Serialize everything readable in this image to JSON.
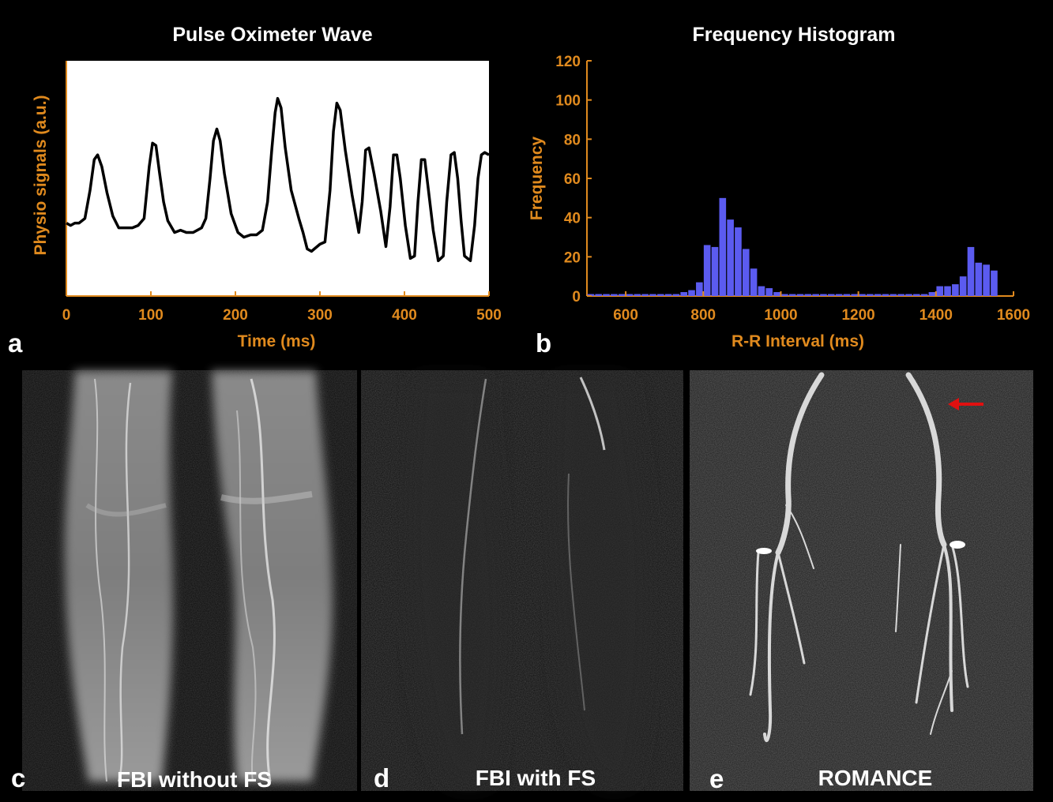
{
  "panels": {
    "a": {
      "letter": "a",
      "chart_data": {
        "type": "line",
        "title": "Pulse Oximeter Wave",
        "xlabel": "Time (ms)",
        "ylabel": "Physio signals (a.u.)",
        "xlim": [
          0,
          500
        ],
        "ylim": [
          0,
          1
        ],
        "xticks": [
          "0",
          "100",
          "200",
          "300",
          "400",
          "500"
        ],
        "grid": false,
        "series": [
          {
            "x": [
              0,
              5,
              10,
              15,
              22,
              28,
              33,
              37,
              42,
              48,
              55,
              62,
              70,
              78,
              85,
              92,
              98,
              102,
              106,
              110,
              115,
              120,
              128,
              135,
              142,
              150,
              160,
              165,
              170,
              174,
              178,
              182,
              187,
              195,
              203,
              210,
              218,
              225,
              232,
              238,
              243,
              247,
              250,
              254,
              259,
              266,
              275,
              280,
              285,
              290,
              300,
              306,
              312,
              316,
              320,
              324,
              330,
              338,
              346,
              350,
              354,
              358,
              364,
              372,
              378,
              383,
              387,
              391,
              395,
              401,
              407,
              412,
              416,
              420,
              424,
              428,
              434,
              440,
              446,
              450,
              455,
              459,
              463,
              467,
              471,
              478,
              483,
              487,
              491,
              495,
              500
            ],
            "y": [
              0.31,
              0.3,
              0.31,
              0.31,
              0.33,
              0.45,
              0.58,
              0.6,
              0.55,
              0.44,
              0.34,
              0.29,
              0.29,
              0.29,
              0.3,
              0.33,
              0.55,
              0.65,
              0.64,
              0.53,
              0.4,
              0.32,
              0.27,
              0.28,
              0.27,
              0.27,
              0.29,
              0.33,
              0.5,
              0.66,
              0.71,
              0.66,
              0.52,
              0.35,
              0.27,
              0.25,
              0.26,
              0.26,
              0.28,
              0.4,
              0.62,
              0.78,
              0.84,
              0.8,
              0.63,
              0.45,
              0.33,
              0.27,
              0.2,
              0.19,
              0.22,
              0.23,
              0.45,
              0.7,
              0.82,
              0.79,
              0.62,
              0.43,
              0.27,
              0.4,
              0.62,
              0.63,
              0.52,
              0.36,
              0.21,
              0.38,
              0.6,
              0.6,
              0.5,
              0.3,
              0.16,
              0.17,
              0.4,
              0.58,
              0.58,
              0.46,
              0.28,
              0.15,
              0.17,
              0.4,
              0.6,
              0.61,
              0.5,
              0.32,
              0.17,
              0.15,
              0.3,
              0.5,
              0.6,
              0.61,
              0.6
            ]
          }
        ]
      }
    },
    "b": {
      "letter": "b",
      "chart_data": {
        "type": "bar",
        "title": "Frequency Histogram",
        "xlabel": "R-R Interval (ms)",
        "ylabel": "Frequency",
        "xlim": [
          500,
          1600
        ],
        "ylim": [
          0,
          120
        ],
        "xticks": [
          "600",
          "800",
          "1000",
          "1200",
          "1400",
          "1600"
        ],
        "yticks": [
          "0",
          "20",
          "40",
          "60",
          "80",
          "100",
          "120"
        ],
        "grid": false,
        "bar_width_ms": 20,
        "bar_color": "#5b5bf0",
        "bins": [
          510,
          530,
          550,
          570,
          590,
          610,
          630,
          650,
          670,
          690,
          710,
          730,
          750,
          770,
          790,
          810,
          830,
          850,
          870,
          890,
          910,
          930,
          950,
          970,
          990,
          1010,
          1030,
          1050,
          1070,
          1090,
          1110,
          1130,
          1150,
          1170,
          1190,
          1210,
          1230,
          1250,
          1270,
          1290,
          1310,
          1330,
          1350,
          1370,
          1390,
          1410,
          1430,
          1450,
          1470,
          1490,
          1510,
          1530,
          1550
        ],
        "values": [
          1,
          1,
          1,
          1,
          1,
          1,
          1,
          1,
          1,
          1,
          1,
          1,
          2,
          3,
          7,
          26,
          25,
          50,
          39,
          35,
          24,
          14,
          5,
          4,
          2,
          1,
          1,
          1,
          1,
          1,
          1,
          1,
          1,
          1,
          1,
          1,
          1,
          1,
          1,
          1,
          1,
          1,
          1,
          1,
          2,
          5,
          5,
          6,
          10,
          25,
          17,
          16,
          13
        ]
      }
    },
    "c": {
      "letter": "c",
      "caption": "FBI without FS"
    },
    "d": {
      "letter": "d",
      "caption": "FBI with FS"
    },
    "e": {
      "letter": "e",
      "caption": "ROMANCE"
    }
  },
  "colors": {
    "axis": "#e08a1e",
    "line": "#000000",
    "bars": "#5b5bf0",
    "arrow": "#e01010",
    "background": "#000000"
  }
}
